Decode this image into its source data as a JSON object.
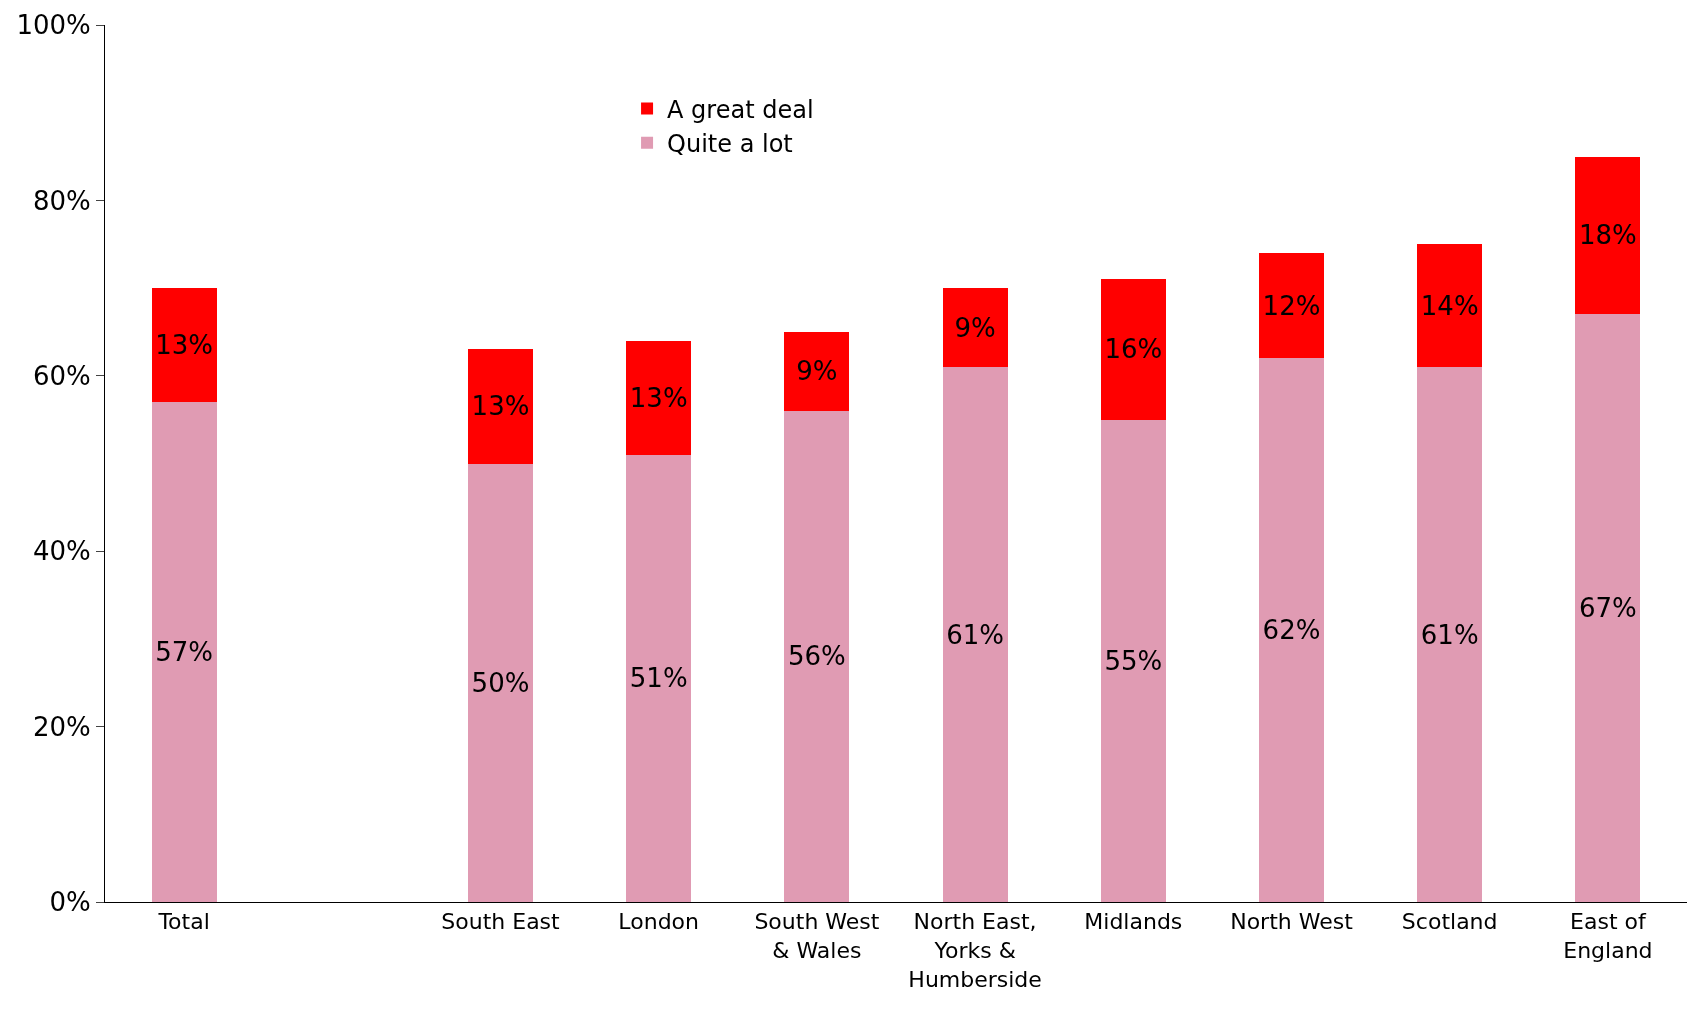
{
  "chart_data": {
    "type": "bar",
    "stacked": true,
    "categories": [
      "Total",
      null,
      "South East",
      "London",
      "South West\n& Wales",
      "North East,\nYorks &\nHumberside",
      "Midlands",
      "North West",
      "Scotland",
      "East of\nEngland"
    ],
    "series": [
      {
        "name": "Quite a lot",
        "color": "#e09bb3",
        "values": [
          57,
          null,
          50,
          51,
          56,
          61,
          55,
          62,
          61,
          67
        ],
        "value_labels": [
          "57%",
          null,
          "50%",
          "51%",
          "56%",
          "61%",
          "55%",
          "62%",
          "61%",
          "67%"
        ]
      },
      {
        "name": "A great deal",
        "color": "#ff0000",
        "values": [
          13,
          null,
          13,
          13,
          9,
          9,
          16,
          12,
          14,
          18
        ],
        "value_labels": [
          "13%",
          null,
          "13%",
          "13%",
          "9%",
          "9%",
          "16%",
          "12%",
          "14%",
          "18%"
        ]
      }
    ],
    "ylim": [
      0,
      100
    ],
    "yticks": [
      {
        "value": 0,
        "label": "0%"
      },
      {
        "value": 20,
        "label": "20%"
      },
      {
        "value": 40,
        "label": "40%"
      },
      {
        "value": 60,
        "label": "60%"
      },
      {
        "value": 80,
        "label": "80%"
      },
      {
        "value": 100,
        "label": "100%"
      }
    ],
    "legend": "top"
  }
}
